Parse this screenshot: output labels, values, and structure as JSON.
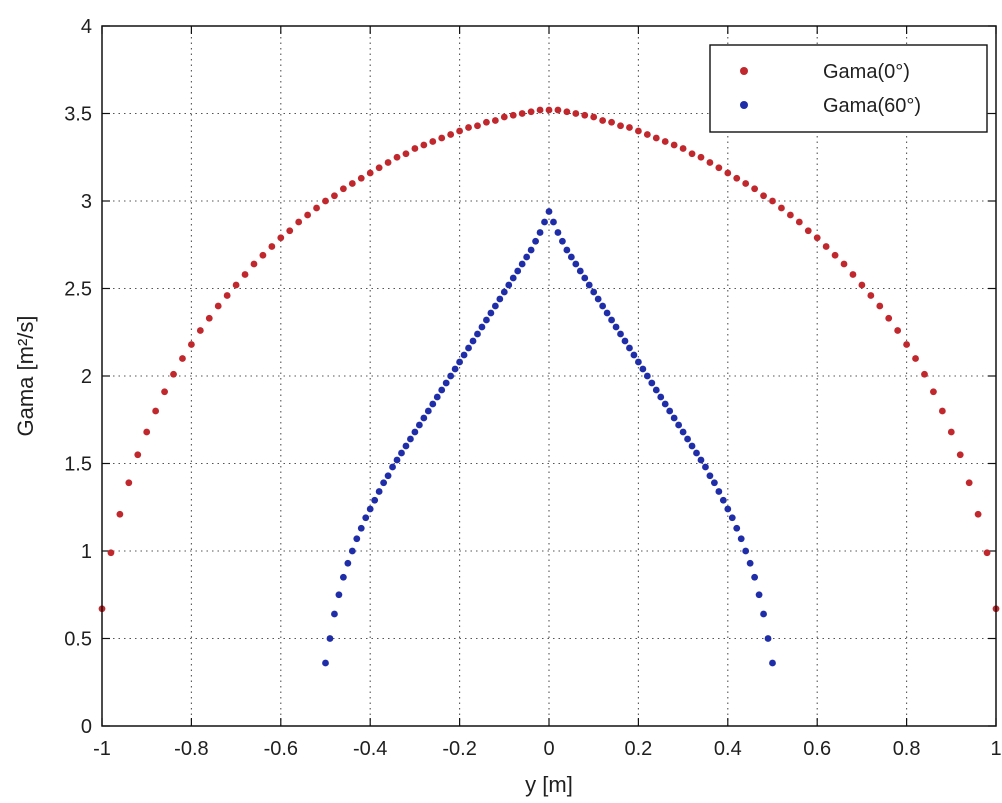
{
  "chart_data": {
    "type": "scatter",
    "title": "",
    "xlabel": "y  [m]",
    "ylabel": "Gama [m²/s]",
    "xlim": [
      -1,
      1
    ],
    "ylim": [
      0,
      4
    ],
    "grid": true,
    "legend_position": "top-right",
    "x_ticks": [
      "-1",
      "-0.8",
      "-0.6",
      "-0.4",
      "-0.2",
      "0",
      "0.2",
      "0.4",
      "0.6",
      "0.8",
      "1"
    ],
    "y_ticks": [
      "0",
      "0.5",
      "1",
      "1.5",
      "2",
      "2.5",
      "3",
      "3.5",
      "4"
    ],
    "series": [
      {
        "name": "Gama(0°)",
        "color": "#c0282d",
        "points": [
          [
            -1.0,
            0.67
          ],
          [
            -0.98,
            0.99
          ],
          [
            -0.96,
            1.21
          ],
          [
            -0.94,
            1.39
          ],
          [
            -0.92,
            1.55
          ],
          [
            -0.9,
            1.68
          ],
          [
            -0.88,
            1.8
          ],
          [
            -0.86,
            1.91
          ],
          [
            -0.84,
            2.01
          ],
          [
            -0.82,
            2.1
          ],
          [
            -0.8,
            2.18
          ],
          [
            -0.78,
            2.26
          ],
          [
            -0.76,
            2.33
          ],
          [
            -0.74,
            2.4
          ],
          [
            -0.72,
            2.46
          ],
          [
            -0.7,
            2.52
          ],
          [
            -0.68,
            2.58
          ],
          [
            -0.66,
            2.64
          ],
          [
            -0.64,
            2.69
          ],
          [
            -0.62,
            2.74
          ],
          [
            -0.6,
            2.79
          ],
          [
            -0.58,
            2.83
          ],
          [
            -0.56,
            2.88
          ],
          [
            -0.54,
            2.92
          ],
          [
            -0.52,
            2.96
          ],
          [
            -0.5,
            3.0
          ],
          [
            -0.48,
            3.03
          ],
          [
            -0.46,
            3.07
          ],
          [
            -0.44,
            3.1
          ],
          [
            -0.42,
            3.13
          ],
          [
            -0.4,
            3.16
          ],
          [
            -0.38,
            3.19
          ],
          [
            -0.36,
            3.22
          ],
          [
            -0.34,
            3.25
          ],
          [
            -0.32,
            3.27
          ],
          [
            -0.3,
            3.3
          ],
          [
            -0.28,
            3.32
          ],
          [
            -0.26,
            3.34
          ],
          [
            -0.24,
            3.36
          ],
          [
            -0.22,
            3.38
          ],
          [
            -0.2,
            3.4
          ],
          [
            -0.18,
            3.42
          ],
          [
            -0.16,
            3.43
          ],
          [
            -0.14,
            3.45
          ],
          [
            -0.12,
            3.46
          ],
          [
            -0.1,
            3.48
          ],
          [
            -0.08,
            3.49
          ],
          [
            -0.06,
            3.5
          ],
          [
            -0.04,
            3.51
          ],
          [
            -0.02,
            3.52
          ],
          [
            0.0,
            3.52
          ],
          [
            0.02,
            3.52
          ],
          [
            0.04,
            3.51
          ],
          [
            0.06,
            3.5
          ],
          [
            0.08,
            3.49
          ],
          [
            0.1,
            3.48
          ],
          [
            0.12,
            3.46
          ],
          [
            0.14,
            3.45
          ],
          [
            0.16,
            3.43
          ],
          [
            0.18,
            3.42
          ],
          [
            0.2,
            3.4
          ],
          [
            0.22,
            3.38
          ],
          [
            0.24,
            3.36
          ],
          [
            0.26,
            3.34
          ],
          [
            0.28,
            3.32
          ],
          [
            0.3,
            3.3
          ],
          [
            0.32,
            3.27
          ],
          [
            0.34,
            3.25
          ],
          [
            0.36,
            3.22
          ],
          [
            0.38,
            3.19
          ],
          [
            0.4,
            3.16
          ],
          [
            0.42,
            3.13
          ],
          [
            0.44,
            3.1
          ],
          [
            0.46,
            3.07
          ],
          [
            0.48,
            3.03
          ],
          [
            0.5,
            3.0
          ],
          [
            0.52,
            2.96
          ],
          [
            0.54,
            2.92
          ],
          [
            0.56,
            2.88
          ],
          [
            0.58,
            2.83
          ],
          [
            0.6,
            2.79
          ],
          [
            0.62,
            2.74
          ],
          [
            0.64,
            2.69
          ],
          [
            0.66,
            2.64
          ],
          [
            0.68,
            2.58
          ],
          [
            0.7,
            2.52
          ],
          [
            0.72,
            2.46
          ],
          [
            0.74,
            2.4
          ],
          [
            0.76,
            2.33
          ],
          [
            0.78,
            2.26
          ],
          [
            0.8,
            2.18
          ],
          [
            0.82,
            2.1
          ],
          [
            0.84,
            2.01
          ],
          [
            0.86,
            1.91
          ],
          [
            0.88,
            1.8
          ],
          [
            0.9,
            1.68
          ],
          [
            0.92,
            1.55
          ],
          [
            0.94,
            1.39
          ],
          [
            0.96,
            1.21
          ],
          [
            0.98,
            0.99
          ],
          [
            1.0,
            0.67
          ]
        ]
      },
      {
        "name": "Gama(60°)",
        "color": "#1f2ea8",
        "points": [
          [
            -0.5,
            0.36
          ],
          [
            -0.49,
            0.5
          ],
          [
            -0.48,
            0.64
          ],
          [
            -0.47,
            0.75
          ],
          [
            -0.46,
            0.85
          ],
          [
            -0.45,
            0.93
          ],
          [
            -0.44,
            1.0
          ],
          [
            -0.43,
            1.07
          ],
          [
            -0.42,
            1.13
          ],
          [
            -0.41,
            1.19
          ],
          [
            -0.4,
            1.24
          ],
          [
            -0.39,
            1.29
          ],
          [
            -0.38,
            1.34
          ],
          [
            -0.37,
            1.39
          ],
          [
            -0.36,
            1.43
          ],
          [
            -0.35,
            1.48
          ],
          [
            -0.34,
            1.52
          ],
          [
            -0.33,
            1.56
          ],
          [
            -0.32,
            1.6
          ],
          [
            -0.31,
            1.64
          ],
          [
            -0.3,
            1.68
          ],
          [
            -0.29,
            1.72
          ],
          [
            -0.28,
            1.76
          ],
          [
            -0.27,
            1.8
          ],
          [
            -0.26,
            1.84
          ],
          [
            -0.25,
            1.88
          ],
          [
            -0.24,
            1.92
          ],
          [
            -0.23,
            1.96
          ],
          [
            -0.22,
            2.0
          ],
          [
            -0.21,
            2.04
          ],
          [
            -0.2,
            2.08
          ],
          [
            -0.19,
            2.12
          ],
          [
            -0.18,
            2.16
          ],
          [
            -0.17,
            2.2
          ],
          [
            -0.16,
            2.24
          ],
          [
            -0.15,
            2.28
          ],
          [
            -0.14,
            2.32
          ],
          [
            -0.13,
            2.36
          ],
          [
            -0.12,
            2.4
          ],
          [
            -0.11,
            2.44
          ],
          [
            -0.1,
            2.48
          ],
          [
            -0.09,
            2.52
          ],
          [
            -0.08,
            2.56
          ],
          [
            -0.07,
            2.6
          ],
          [
            -0.06,
            2.64
          ],
          [
            -0.05,
            2.68
          ],
          [
            -0.04,
            2.72
          ],
          [
            -0.03,
            2.77
          ],
          [
            -0.02,
            2.82
          ],
          [
            -0.01,
            2.88
          ],
          [
            0.0,
            2.94
          ],
          [
            0.01,
            2.88
          ],
          [
            0.02,
            2.82
          ],
          [
            0.03,
            2.77
          ],
          [
            0.04,
            2.72
          ],
          [
            0.05,
            2.68
          ],
          [
            0.06,
            2.64
          ],
          [
            0.07,
            2.6
          ],
          [
            0.08,
            2.56
          ],
          [
            0.09,
            2.52
          ],
          [
            0.1,
            2.48
          ],
          [
            0.11,
            2.44
          ],
          [
            0.12,
            2.4
          ],
          [
            0.13,
            2.36
          ],
          [
            0.14,
            2.32
          ],
          [
            0.15,
            2.28
          ],
          [
            0.16,
            2.24
          ],
          [
            0.17,
            2.2
          ],
          [
            0.18,
            2.16
          ],
          [
            0.19,
            2.12
          ],
          [
            0.2,
            2.08
          ],
          [
            0.21,
            2.04
          ],
          [
            0.22,
            2.0
          ],
          [
            0.23,
            1.96
          ],
          [
            0.24,
            1.92
          ],
          [
            0.25,
            1.88
          ],
          [
            0.26,
            1.84
          ],
          [
            0.27,
            1.8
          ],
          [
            0.28,
            1.76
          ],
          [
            0.29,
            1.72
          ],
          [
            0.3,
            1.68
          ],
          [
            0.31,
            1.64
          ],
          [
            0.32,
            1.6
          ],
          [
            0.33,
            1.56
          ],
          [
            0.34,
            1.52
          ],
          [
            0.35,
            1.48
          ],
          [
            0.36,
            1.43
          ],
          [
            0.37,
            1.39
          ],
          [
            0.38,
            1.34
          ],
          [
            0.39,
            1.29
          ],
          [
            0.4,
            1.24
          ],
          [
            0.41,
            1.19
          ],
          [
            0.42,
            1.13
          ],
          [
            0.43,
            1.07
          ],
          [
            0.44,
            1.0
          ],
          [
            0.45,
            0.93
          ],
          [
            0.46,
            0.85
          ],
          [
            0.47,
            0.75
          ],
          [
            0.48,
            0.64
          ],
          [
            0.49,
            0.5
          ],
          [
            0.5,
            0.36
          ]
        ]
      }
    ]
  }
}
